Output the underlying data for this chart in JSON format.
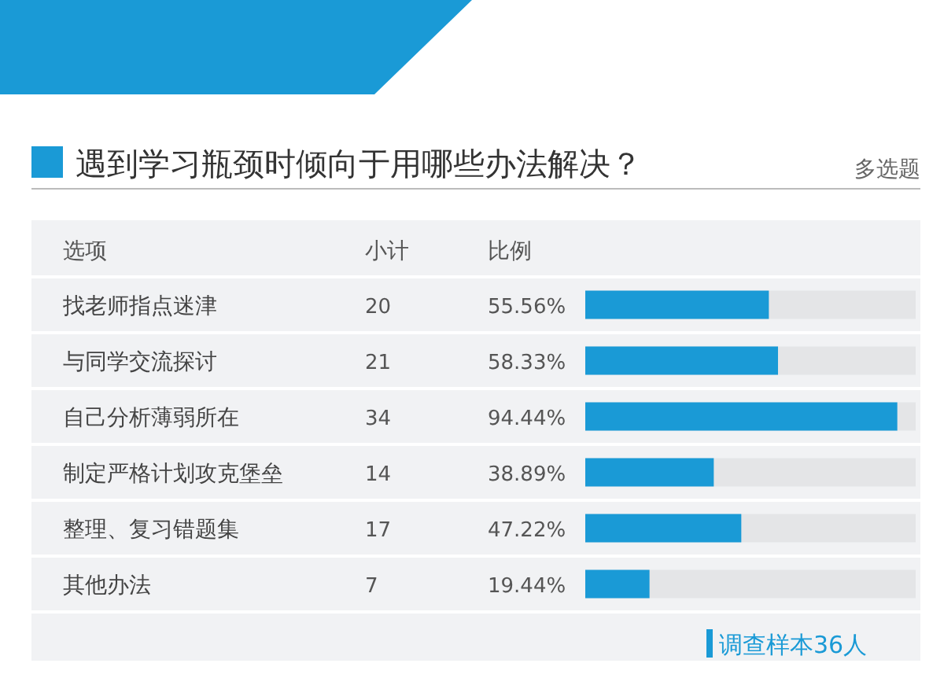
{
  "chart_data": {
    "type": "bar",
    "orientation": "horizontal",
    "title": "遇到学习瓶颈时倾向于用哪些办法解决？",
    "subtitle": "多选题",
    "categories": [
      "找老师指点迷津",
      "与同学交流探讨",
      "自己分析薄弱所在",
      "制定严格计划攻克堡垒",
      "整理、复习错题集",
      "其他办法"
    ],
    "values": [
      55.56,
      58.33,
      94.44,
      38.89,
      47.22,
      19.44
    ],
    "value_labels": [
      "55.56%",
      "58.33%",
      "94.44%",
      "38.89%",
      "47.22%",
      "19.44%"
    ],
    "color": "#1a9ad6",
    "xlim": [
      0,
      100
    ],
    "annotations": [
      "选项",
      "小计",
      "比例",
      "20",
      "21",
      "34",
      "14",
      "17",
      "7",
      "调查样本36人"
    ]
  }
}
